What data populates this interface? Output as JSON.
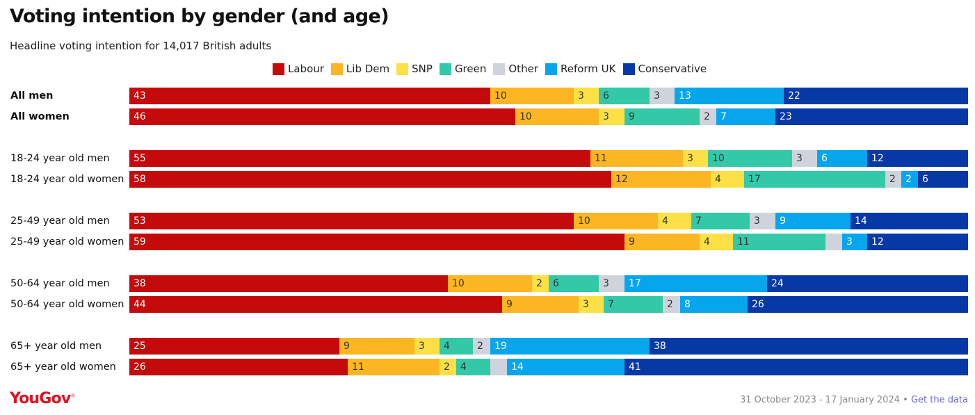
{
  "title": "Voting intention by gender (and age)",
  "subtitle": "Headline voting intention for 14,017 British adults",
  "brand": "YouGov",
  "footer": {
    "date_range": "31 October 2023 - 17 January 2024",
    "separator": "•",
    "link_text": "Get the data"
  },
  "chart_data": {
    "type": "bar",
    "stacked": true,
    "orientation": "horizontal",
    "xlim": [
      0,
      100
    ],
    "legend_position": "top",
    "categories": [
      "All men",
      "All women",
      "18-24 year old men",
      "18-24 year old women",
      "25-49 year old men",
      "25-49 year old women",
      "50-64 year old men",
      "50-64 year old women",
      "65+ year old men",
      "65+ year old women"
    ],
    "bold_categories": [
      "All men",
      "All women"
    ],
    "series": [
      {
        "name": "Labour",
        "color": "#c40a0a",
        "label_color": "#ffffff",
        "values": [
          43,
          46,
          55,
          58,
          53,
          59,
          38,
          44,
          25,
          26
        ]
      },
      {
        "name": "Lib Dem",
        "color": "#fcb623",
        "label_color": "#333333",
        "values": [
          10,
          10,
          11,
          12,
          10,
          9,
          10,
          9,
          9,
          11
        ]
      },
      {
        "name": "SNP",
        "color": "#fde046",
        "label_color": "#333333",
        "values": [
          3,
          3,
          3,
          4,
          4,
          4,
          2,
          3,
          3,
          2
        ]
      },
      {
        "name": "Green",
        "color": "#33c9a8",
        "label_color": "#333333",
        "values": [
          6,
          9,
          10,
          17,
          7,
          11,
          6,
          7,
          4,
          4
        ]
      },
      {
        "name": "Other",
        "color": "#cfd3dc",
        "label_color": "#333333",
        "values": [
          3,
          2,
          3,
          2,
          3,
          2,
          3,
          2,
          2,
          2
        ]
      },
      {
        "name": "Reform UK",
        "color": "#07a6ec",
        "label_color": "#ffffff",
        "values": [
          13,
          7,
          6,
          2,
          9,
          3,
          17,
          8,
          19,
          14
        ]
      },
      {
        "name": "Conservative",
        "color": "#0739a6",
        "label_color": "#ffffff",
        "values": [
          22,
          23,
          12,
          6,
          14,
          12,
          24,
          26,
          38,
          41
        ]
      }
    ],
    "hidden_labels": [
      [
        5,
        4
      ],
      [
        9,
        4
      ]
    ]
  }
}
